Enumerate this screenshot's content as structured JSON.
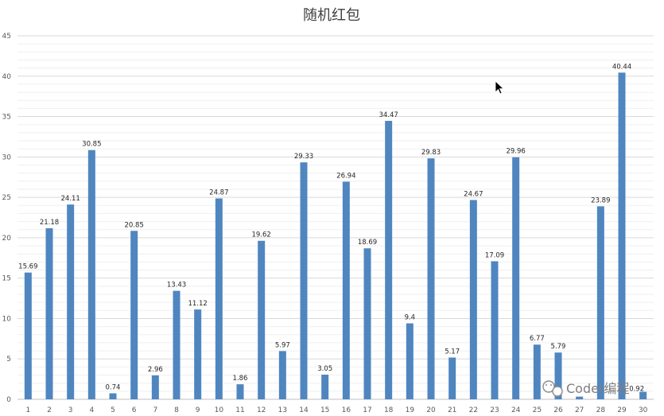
{
  "chart_data": {
    "type": "bar",
    "title": "随机红包",
    "xlabel": "",
    "ylabel": "",
    "ylim": [
      0,
      45
    ],
    "y_ticks": [
      0,
      5,
      10,
      15,
      20,
      25,
      30,
      35,
      40,
      45
    ],
    "grid": true,
    "legend": "none",
    "bar_color": "#4f86c0",
    "categories": [
      "1",
      "2",
      "3",
      "4",
      "5",
      "6",
      "7",
      "8",
      "9",
      "10",
      "11",
      "12",
      "13",
      "14",
      "15",
      "16",
      "17",
      "18",
      "19",
      "20",
      "21",
      "22",
      "23",
      "24",
      "25",
      "26",
      "27",
      "28",
      "29",
      "30"
    ],
    "values": [
      15.69,
      21.18,
      24.11,
      30.85,
      0.74,
      20.85,
      2.96,
      13.43,
      11.12,
      24.87,
      1.86,
      19.62,
      5.97,
      29.33,
      3.05,
      26.94,
      18.69,
      34.47,
      9.4,
      29.83,
      5.17,
      24.67,
      17.09,
      29.96,
      6.77,
      5.79,
      0.33,
      23.89,
      40.44,
      0.92
    ],
    "data_labels": [
      "15.69",
      "21.18",
      "24.11",
      "30.85",
      "0.74",
      "20.85",
      "2.96",
      "13.43",
      "11.12",
      "24.87",
      "1.86",
      "19.62",
      "5.97",
      "29.33",
      "3.05",
      "26.94",
      "18.69",
      "34.47",
      "9.4",
      "29.83",
      "5.17",
      "24.67",
      "17.09",
      "29.96",
      "6.77",
      "5.79",
      "",
      "23.89",
      "40.44",
      "0.92"
    ]
  },
  "watermark": {
    "text": "Coder编程",
    "icon": "wechat-icon"
  },
  "cursor": {
    "icon": "mouse-pointer-icon"
  }
}
